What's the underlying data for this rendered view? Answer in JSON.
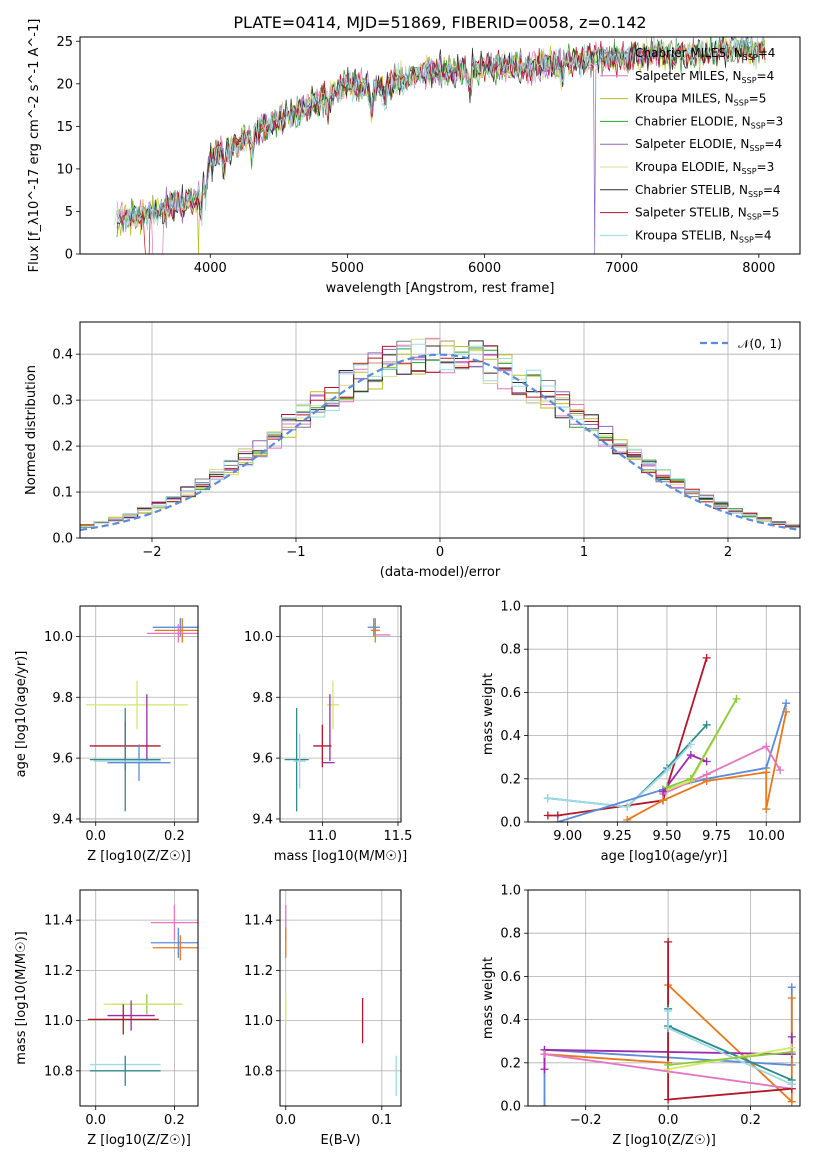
{
  "colors": {
    "cmiles": "#7f7f7f",
    "smiles": "#e377c2",
    "kmiles": "#bcbd22",
    "celodie": "#2ca02c",
    "selodie": "#9467bd",
    "kelodie": "#dbdb8d",
    "cstelib": "#2f2f2f",
    "sstelib": "#b2182b",
    "kstelib": "#9edae5",
    "pt_blue": "#5b8bd9",
    "pt_orange": "#e6791c",
    "pt_pink": "#e377c2",
    "pt_green": "#8ccc3c",
    "pt_purple": "#9b2ab0",
    "pt_red": "#b2182b",
    "pt_teal": "#2e8b8b",
    "pt_cyan": "#9edae5",
    "pt_lime": "#d4e86a",
    "norm_line": "#5b8bd9"
  },
  "chart_data": [
    {
      "id": "spectrum",
      "type": "line",
      "title": "PLATE=0414, MJD=51869, FIBERID=0058, z=0.142",
      "xlabel": "wavelength [Angstrom, rest frame]",
      "ylabel": "Flux [f_λ10^-17 erg cm^-2 s^-1 A^-1]",
      "xlim": [
        3050,
        8300
      ],
      "ylim": [
        0,
        25.5
      ],
      "xticks": [
        4000,
        5000,
        6000,
        7000,
        8000
      ],
      "yticks": [
        0,
        5,
        10,
        15,
        20,
        25
      ],
      "legend_position": "top-right",
      "x": [
        3300,
        3500,
        3700,
        3900,
        4000,
        4200,
        4400,
        4600,
        4800,
        5000,
        5200,
        5400,
        5600,
        5800,
        6000,
        6200,
        6400,
        6600,
        6800,
        7000,
        7200,
        7400,
        7600,
        7800,
        8000
      ],
      "baseline": [
        4.2,
        4.5,
        5.5,
        6.5,
        11,
        13,
        15,
        16.5,
        18,
        20,
        19.5,
        20.5,
        21.5,
        21.5,
        22,
        22,
        22,
        22.5,
        23,
        23,
        23.5,
        23.5,
        23.5,
        24,
        24
      ],
      "series": [
        {
          "label": "Chabrier MILES, N",
          "sub": "SSP",
          "n": "=4",
          "color_key": "cmiles"
        },
        {
          "label": "Salpeter MILES, N",
          "sub": "SSP",
          "n": "=4",
          "color_key": "smiles"
        },
        {
          "label": "Kroupa MILES, N",
          "sub": "SSP",
          "n": "=5",
          "color_key": "kmiles"
        },
        {
          "label": "Chabrier ELODIE, N",
          "sub": "SSP",
          "n": "=3",
          "color_key": "celodie"
        },
        {
          "label": "Salpeter ELODIE, N",
          "sub": "SSP",
          "n": "=4",
          "color_key": "selodie"
        },
        {
          "label": "Kroupa ELODIE, N",
          "sub": "SSP",
          "n": "=3",
          "color_key": "kelodie"
        },
        {
          "label": "Chabrier STELIB, N",
          "sub": "SSP",
          "n": "=4",
          "color_key": "cstelib"
        },
        {
          "label": "Salpeter STELIB, N",
          "sub": "SSP",
          "n": "=5",
          "color_key": "sstelib"
        },
        {
          "label": "Kroupa STELIB, N",
          "sub": "SSP",
          "n": "=4",
          "color_key": "kstelib"
        }
      ]
    },
    {
      "id": "residuals",
      "type": "line",
      "xlabel": "(data-model)/error",
      "ylabel": "Normed distribution",
      "xlim": [
        -2.5,
        2.5
      ],
      "ylim": [
        0,
        0.47
      ],
      "xticks": [
        -2,
        -1,
        0,
        1,
        2
      ],
      "yticks": [
        0.0,
        0.1,
        0.2,
        0.3,
        0.4
      ],
      "legend_position": "top-right",
      "legend_label": "𝒩(0, 1)",
      "histogram_colors": [
        "cmiles",
        "smiles",
        "kmiles",
        "celodie",
        "selodie",
        "kelodie",
        "cstelib",
        "sstelib",
        "kstelib"
      ]
    },
    {
      "id": "age_vs_Z",
      "type": "scatter",
      "xlabel": "Z [log10(Z/Z☉)]",
      "ylabel": "age  [log10(age/yr)]",
      "xlim": [
        -0.04,
        0.26
      ],
      "ylim": [
        9.39,
        10.1
      ],
      "xticks": [
        0.0,
        0.2
      ],
      "yticks": [
        9.4,
        9.6,
        9.8,
        10.0
      ],
      "points": [
        {
          "x": 0.215,
          "y": 10.03,
          "xerr": 0.07,
          "yerr": 0.03,
          "c": "pt_blue"
        },
        {
          "x": 0.22,
          "y": 10.02,
          "xerr": 0.07,
          "yerr": 0.04,
          "c": "pt_orange"
        },
        {
          "x": 0.21,
          "y": 10.01,
          "xerr": 0.08,
          "yerr": 0.03,
          "c": "pt_pink"
        },
        {
          "x": 0.105,
          "y": 9.775,
          "xerr": 0.13,
          "yerr": 0.08,
          "c": "pt_lime"
        },
        {
          "x": 0.13,
          "y": 9.7,
          "xerr": 0.0,
          "yerr": 0.11,
          "c": "pt_purple"
        },
        {
          "x": 0.075,
          "y": 9.64,
          "xerr": 0.09,
          "yerr": 0.08,
          "c": "pt_red"
        },
        {
          "x": 0.075,
          "y": 9.595,
          "xerr": 0.09,
          "yerr": 0.17,
          "c": "pt_teal"
        },
        {
          "x": 0.11,
          "y": 9.585,
          "xerr": 0.08,
          "yerr": 0.06,
          "c": "pt_blue"
        },
        {
          "x": 0.08,
          "y": 9.59,
          "xerr": 0.085,
          "yerr": 0.0,
          "c": "pt_cyan"
        }
      ]
    },
    {
      "id": "age_vs_mass",
      "type": "scatter",
      "xlabel": "mass [log10(M/M☉)]",
      "ylabel": "",
      "xlim": [
        10.72,
        11.52
      ],
      "ylim": [
        9.39,
        10.1
      ],
      "xticks": [
        11.0,
        11.5
      ],
      "yticks": [
        9.4,
        9.6,
        9.8,
        10.0
      ],
      "points": [
        {
          "x": 11.34,
          "y": 10.03,
          "xerr": 0.04,
          "yerr": 0.03,
          "c": "pt_blue"
        },
        {
          "x": 11.35,
          "y": 10.02,
          "xerr": 0.03,
          "yerr": 0.04,
          "c": "pt_orange"
        },
        {
          "x": 11.4,
          "y": 10.005,
          "xerr": 0.05,
          "yerr": 0.0,
          "c": "pt_pink"
        },
        {
          "x": 11.07,
          "y": 9.775,
          "xerr": 0.04,
          "yerr": 0.08,
          "c": "pt_lime"
        },
        {
          "x": 11.05,
          "y": 9.7,
          "xerr": 0.0,
          "yerr": 0.11,
          "c": "pt_purple"
        },
        {
          "x": 11.0,
          "y": 9.64,
          "xerr": 0.06,
          "yerr": 0.07,
          "c": "pt_red"
        },
        {
          "x": 10.83,
          "y": 9.595,
          "xerr": 0.08,
          "yerr": 0.17,
          "c": "pt_teal"
        },
        {
          "x": 11.04,
          "y": 9.585,
          "xerr": 0.04,
          "yerr": 0.0,
          "c": "pt_purple"
        },
        {
          "x": 10.85,
          "y": 9.59,
          "xerr": 0.04,
          "yerr": 0.09,
          "c": "pt_cyan"
        }
      ]
    },
    {
      "id": "weight_vs_age",
      "type": "line",
      "xlabel": "age  [log10(age/yr)]",
      "ylabel": "mass weight",
      "xlim": [
        8.8,
        10.17
      ],
      "ylim": [
        0,
        1.0
      ],
      "xticks": [
        9.0,
        9.25,
        9.5,
        9.75,
        10.0
      ],
      "yticks": [
        0.0,
        0.2,
        0.4,
        0.6,
        0.8,
        1.0
      ],
      "series": [
        {
          "c": "pt_red",
          "x": [
            8.9,
            8.95,
            9.48,
            9.7
          ],
          "y": [
            0.03,
            0.03,
            0.1,
            0.76
          ]
        },
        {
          "c": "pt_teal",
          "x": [
            8.9,
            9.3,
            9.5,
            9.7
          ],
          "y": [
            0.11,
            0.07,
            0.25,
            0.45
          ]
        },
        {
          "c": "pt_cyan",
          "x": [
            8.9,
            9.3,
            9.5,
            9.62
          ],
          "y": [
            0.11,
            0.07,
            0.24,
            0.36
          ]
        },
        {
          "c": "pt_blue",
          "x": [
            8.95,
            9.48,
            9.7,
            10.0,
            10.1
          ],
          "y": [
            0.0,
            0.15,
            0.2,
            0.25,
            0.55
          ]
        },
        {
          "c": "pt_orange",
          "x": [
            9.3,
            9.48,
            9.7,
            10.0,
            10.0,
            10.1
          ],
          "y": [
            0.01,
            0.1,
            0.19,
            0.23,
            0.06,
            0.51
          ]
        },
        {
          "c": "pt_pink",
          "x": [
            9.48,
            9.7,
            10.0,
            10.07
          ],
          "y": [
            0.13,
            0.22,
            0.35,
            0.24
          ]
        },
        {
          "c": "pt_lime",
          "x": [
            9.5,
            9.62,
            9.85
          ],
          "y": [
            0.15,
            0.19,
            0.57
          ]
        },
        {
          "c": "pt_purple",
          "x": [
            9.48,
            9.62,
            9.7
          ],
          "y": [
            0.14,
            0.31,
            0.28
          ]
        },
        {
          "c": "pt_green",
          "x": [
            9.5,
            9.62,
            9.85
          ],
          "y": [
            0.16,
            0.2,
            0.57
          ]
        }
      ]
    },
    {
      "id": "mass_vs_Z",
      "type": "scatter",
      "xlabel": "Z [log10(Z/Z☉)]",
      "ylabel": "mass [log10(M/M☉)]",
      "xlim": [
        -0.04,
        0.26
      ],
      "ylim": [
        10.66,
        11.52
      ],
      "xticks": [
        0.0,
        0.2
      ],
      "yticks": [
        10.8,
        11.0,
        11.2,
        11.4
      ],
      "points": [
        {
          "x": 0.2,
          "y": 11.39,
          "xerr": 0.06,
          "yerr": 0.07,
          "c": "pt_pink"
        },
        {
          "x": 0.21,
          "y": 11.31,
          "xerr": 0.07,
          "yerr": 0.06,
          "c": "pt_blue"
        },
        {
          "x": 0.215,
          "y": 11.29,
          "xerr": 0.07,
          "yerr": 0.05,
          "c": "pt_orange"
        },
        {
          "x": 0.13,
          "y": 11.065,
          "xerr": 0.09,
          "yerr": 0.04,
          "c": "pt_green"
        },
        {
          "x": 0.12,
          "y": 11.065,
          "xerr": 0.1,
          "yerr": 0.0,
          "c": "pt_lime"
        },
        {
          "x": 0.09,
          "y": 11.02,
          "xerr": 0.06,
          "yerr": 0.06,
          "c": "pt_purple"
        },
        {
          "x": 0.07,
          "y": 11.005,
          "xerr": 0.09,
          "yerr": 0.06,
          "c": "pt_red"
        },
        {
          "x": 0.075,
          "y": 10.825,
          "xerr": 0.09,
          "yerr": 0.03,
          "c": "pt_cyan"
        },
        {
          "x": 0.075,
          "y": 10.8,
          "xerr": 0.09,
          "yerr": 0.06,
          "c": "pt_teal"
        }
      ]
    },
    {
      "id": "mass_vs_ebv",
      "type": "scatter",
      "xlabel": "E(B-V)",
      "ylabel": "",
      "xlim": [
        -0.006,
        0.12
      ],
      "ylim": [
        10.66,
        11.52
      ],
      "xticks": [
        0.0,
        0.1
      ],
      "yticks": [
        10.8,
        11.0,
        11.2,
        11.4
      ],
      "points": [
        {
          "x": 0.0,
          "y": 11.39,
          "xerr": 0.0,
          "yerr": 0.07,
          "c": "pt_pink"
        },
        {
          "x": 0.0,
          "y": 11.31,
          "xerr": 0.0,
          "yerr": 0.06,
          "c": "pt_orange"
        },
        {
          "x": 0.0,
          "y": 11.05,
          "xerr": 0.0,
          "yerr": 0.06,
          "c": "pt_lime"
        },
        {
          "x": 0.08,
          "y": 11.0,
          "xerr": 0.0,
          "yerr": 0.09,
          "c": "pt_red"
        },
        {
          "x": 0.115,
          "y": 10.78,
          "xerr": 0.0,
          "yerr": 0.08,
          "c": "pt_cyan"
        }
      ]
    },
    {
      "id": "weight_vs_Z",
      "type": "line",
      "xlabel": "Z [log10(Z/Z☉)]",
      "ylabel": "mass weight",
      "xlim": [
        -0.34,
        0.32
      ],
      "ylim": [
        0,
        1.0
      ],
      "xticks": [
        -0.2,
        0.0,
        0.2
      ],
      "yticks": [
        0.0,
        0.2,
        0.4,
        0.6,
        0.8,
        1.0
      ],
      "series": [
        {
          "c": "pt_blue",
          "x": [
            -0.3,
            -0.3,
            0.3,
            0.3
          ],
          "y": [
            0.0,
            0.26,
            0.19,
            0.55
          ]
        },
        {
          "c": "pt_orange",
          "x": [
            -0.3,
            0.0,
            0.0,
            0.3,
            0.3
          ],
          "y": [
            0.24,
            0.2,
            0.56,
            0.02,
            0.5
          ]
        },
        {
          "c": "pt_purple",
          "x": [
            -0.3,
            -0.3,
            0.3,
            0.3
          ],
          "y": [
            0.17,
            0.26,
            0.24,
            0.32
          ]
        },
        {
          "c": "pt_pink",
          "x": [
            -0.3,
            0.3
          ],
          "y": [
            0.24,
            0.08
          ]
        },
        {
          "c": "pt_red",
          "x": [
            0.0,
            0.0,
            0.3
          ],
          "y": [
            0.76,
            0.03,
            0.08
          ]
        },
        {
          "c": "pt_teal",
          "x": [
            0.0,
            0.0,
            0.3,
            0.3
          ],
          "y": [
            0.45,
            0.37,
            0.12,
            0.1
          ]
        },
        {
          "c": "pt_cyan",
          "x": [
            0.0,
            0.0,
            0.3
          ],
          "y": [
            0.44,
            0.36,
            0.1
          ]
        },
        {
          "c": "pt_lime",
          "x": [
            0.0,
            0.3
          ],
          "y": [
            0.17,
            0.27
          ]
        },
        {
          "c": "pt_green",
          "x": [
            0.0,
            0.3
          ],
          "y": [
            0.19,
            0.25
          ]
        }
      ]
    }
  ]
}
